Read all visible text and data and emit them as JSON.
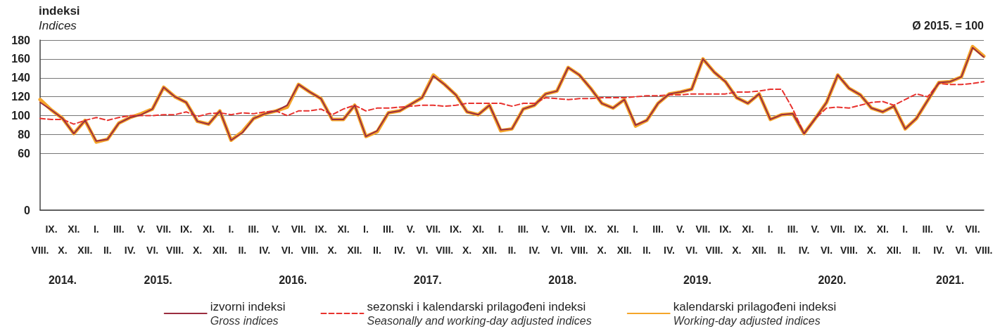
{
  "chart_data": {
    "type": "line",
    "ylabel": "indeksi\nIndices",
    "annotations": [
      "Ø 2015. = 100",
      "2014.",
      "2015.",
      "2016.",
      "2017.",
      "2018.",
      "2019.",
      "2020.",
      "2021."
    ],
    "categories": [
      "VIII.",
      "IX.",
      "X.",
      "XI.",
      "XII.",
      "I.",
      "II.",
      "III.",
      "IV.",
      "V.",
      "VI.",
      "VII.",
      "VIII.",
      "IX.",
      "X.",
      "XI.",
      "XII.",
      "I.",
      "II.",
      "III.",
      "IV.",
      "V.",
      "VI.",
      "VII.",
      "VIII.",
      "IX.",
      "X.",
      "XI.",
      "XII.",
      "I.",
      "II.",
      "III.",
      "IV.",
      "V.",
      "VI.",
      "VII.",
      "VIII.",
      "IX.",
      "X.",
      "XI.",
      "XII.",
      "I.",
      "II.",
      "III.",
      "IV.",
      "V.",
      "VI.",
      "VII.",
      "VIII.",
      "IX.",
      "X.",
      "XI.",
      "XII.",
      "I.",
      "II.",
      "III.",
      "IV.",
      "V.",
      "VI.",
      "VII.",
      "VIII.",
      "IX.",
      "X.",
      "XI.",
      "XII.",
      "I.",
      "II.",
      "III.",
      "IV.",
      "V.",
      "VI.",
      "VII.",
      "VIII.",
      "IX.",
      "X.",
      "XI.",
      "XII.",
      "I.",
      "II.",
      "III.",
      "IV.",
      "V.",
      "VI.",
      "VII.",
      "VIII."
    ],
    "series": [
      {
        "name": "izvorni indeksi\nGross indices",
        "color": "#9b2d3f",
        "line_style": "solid",
        "values": [
          114,
          106,
          97,
          81,
          95,
          73,
          75,
          92,
          98,
          101,
          107,
          130,
          120,
          114,
          94,
          91,
          105,
          74,
          82,
          97,
          102,
          105,
          111,
          133,
          125,
          118,
          96,
          96,
          111,
          78,
          84,
          103,
          105,
          112,
          119,
          142,
          133,
          122,
          104,
          101,
          111,
          85,
          86,
          107,
          111,
          123,
          126,
          151,
          143,
          129,
          113,
          108,
          117,
          90,
          95,
          113,
          123,
          125,
          128,
          160,
          146,
          136,
          119,
          113,
          123,
          96,
          101,
          102,
          81,
          97,
          114,
          143,
          129,
          122,
          108,
          104,
          110,
          86,
          97,
          116,
          135,
          136,
          141,
          172,
          162
        ]
      },
      {
        "name": "sezonski i kalendarski prilagođeni indeksi\nSeasonally and working-day adjusted indices",
        "color": "#e8322e",
        "line_style": "dashed",
        "values": [
          97,
          96,
          96,
          91,
          95,
          98,
          95,
          98,
          100,
          100,
          100,
          101,
          101,
          104,
          99,
          102,
          103,
          101,
          103,
          102,
          104,
          105,
          100,
          105,
          105,
          107,
          101,
          107,
          111,
          105,
          108,
          108,
          109,
          110,
          111,
          111,
          110,
          111,
          113,
          113,
          113,
          113,
          110,
          113,
          113,
          119,
          118,
          117,
          118,
          118,
          119,
          119,
          119,
          120,
          121,
          121,
          122,
          122,
          123,
          123,
          123,
          123,
          125,
          125,
          126,
          128,
          128,
          107,
          81,
          97,
          108,
          109,
          108,
          111,
          114,
          115,
          111,
          117,
          123,
          120,
          134,
          133,
          133,
          134,
          136
        ]
      },
      {
        "name": "kalendarski prilagođeni indeksi\nWorking-day adjusted indices",
        "color": "#f5a52a",
        "line_style": "solid",
        "values": [
          117,
          106,
          97,
          81,
          95,
          72,
          75,
          92,
          98,
          102,
          107,
          130,
          120,
          114,
          94,
          91,
          105,
          74,
          83,
          97,
          102,
          105,
          109,
          133,
          125,
          118,
          96,
          96,
          111,
          78,
          83,
          103,
          105,
          112,
          119,
          143,
          133,
          122,
          104,
          101,
          111,
          84,
          86,
          107,
          111,
          123,
          126,
          151,
          143,
          129,
          113,
          108,
          117,
          89,
          95,
          113,
          123,
          125,
          128,
          160,
          146,
          136,
          119,
          113,
          123,
          96,
          101,
          102,
          81,
          97,
          114,
          143,
          129,
          122,
          108,
          104,
          110,
          86,
          97,
          116,
          135,
          136,
          141,
          173,
          163
        ]
      }
    ],
    "ylim": [
      0,
      180
    ],
    "yticks": [
      0,
      60,
      80,
      100,
      120,
      140,
      160,
      180
    ],
    "grid": "y",
    "legend": "bottom",
    "marker": "none"
  }
}
